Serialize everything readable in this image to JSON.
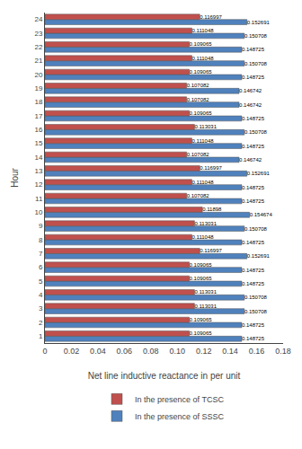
{
  "chart_data": {
    "type": "bar",
    "orientation": "horizontal",
    "categories": [
      1,
      2,
      3,
      4,
      5,
      6,
      7,
      8,
      9,
      10,
      11,
      12,
      13,
      14,
      15,
      16,
      17,
      18,
      19,
      20,
      21,
      22,
      23,
      24
    ],
    "series": [
      {
        "name": "In the presence of TCSC",
        "color": "#c0504d",
        "values": [
          0.109065,
          0.109065,
          0.113031,
          0.113031,
          0.109065,
          0.109065,
          0.116997,
          0.111048,
          0.113031,
          0.11898,
          0.107082,
          0.111048,
          0.116997,
          0.107082,
          0.111048,
          0.113031,
          0.109065,
          0.107082,
          0.107082,
          0.109065,
          0.111048,
          0.109065,
          0.111048,
          0.116997
        ]
      },
      {
        "name": "In the presence of SSSC",
        "color": "#4f81bd",
        "values": [
          0.148725,
          0.148725,
          0.150708,
          0.150708,
          0.148725,
          0.148725,
          0.152691,
          0.148725,
          0.150708,
          0.154674,
          0.148725,
          0.148725,
          0.152691,
          0.146742,
          0.148725,
          0.150708,
          0.148725,
          0.146742,
          0.146742,
          0.148725,
          0.150708,
          0.148725,
          0.150708,
          0.152691
        ]
      }
    ],
    "xlabel": "Net line inductive reactance in per unit",
    "ylabel": "Hour",
    "xlim": [
      0,
      0.18
    ],
    "xticks": [
      0,
      0.02,
      0.04,
      0.06,
      0.08,
      {
        "value": 0.1,
        "label": "0.10"
      },
      0.12,
      0.14,
      0.16,
      0.18
    ],
    "data_labels": true,
    "grid": false,
    "legend": "bottom"
  }
}
